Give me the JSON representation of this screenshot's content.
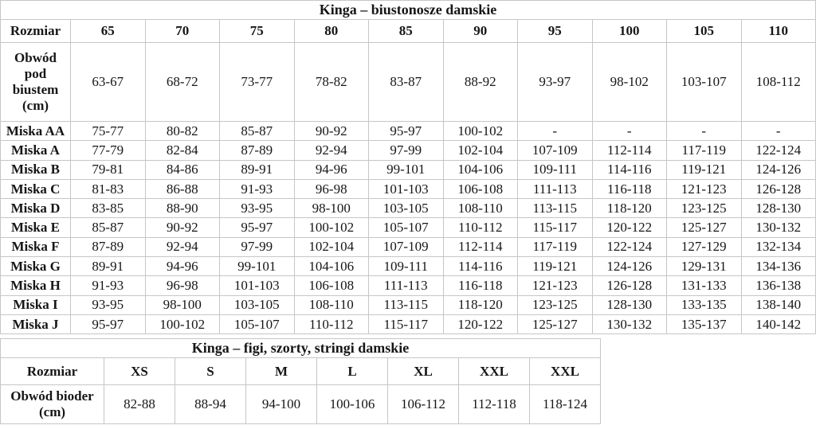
{
  "page": {
    "background_color": "#ffffff",
    "border_color": "#c6c6c6",
    "text_color": "#161616"
  },
  "bra_table": {
    "title": "Kinga – biustonosze damskie",
    "header_label": "Rozmiar",
    "header_sizes": [
      "65",
      "70",
      "75",
      "80",
      "85",
      "90",
      "95",
      "100",
      "105",
      "110"
    ],
    "underbust_label": "Obwód pod biustem (cm)",
    "underbust_values": [
      "63-67",
      "68-72",
      "73-77",
      "78-82",
      "83-87",
      "88-92",
      "93-97",
      "98-102",
      "103-107",
      "108-112"
    ],
    "rows": [
      {
        "label": "Miska AA",
        "values": [
          "75-77",
          "80-82",
          "85-87",
          "90-92",
          "95-97",
          "100-102",
          "-",
          "-",
          "-",
          "-"
        ]
      },
      {
        "label": "Miska A",
        "values": [
          "77-79",
          "82-84",
          "87-89",
          "92-94",
          "97-99",
          "102-104",
          "107-109",
          "112-114",
          "117-119",
          "122-124"
        ]
      },
      {
        "label": "Miska B",
        "values": [
          "79-81",
          "84-86",
          "89-91",
          "94-96",
          "99-101",
          "104-106",
          "109-111",
          "114-116",
          "119-121",
          "124-126"
        ]
      },
      {
        "label": "Miska C",
        "values": [
          "81-83",
          "86-88",
          "91-93",
          "96-98",
          "101-103",
          "106-108",
          "111-113",
          "116-118",
          "121-123",
          "126-128"
        ]
      },
      {
        "label": "Miska D",
        "values": [
          "83-85",
          "88-90",
          "93-95",
          "98-100",
          "103-105",
          "108-110",
          "113-115",
          "118-120",
          "123-125",
          "128-130"
        ]
      },
      {
        "label": "Miska E",
        "values": [
          "85-87",
          "90-92",
          "95-97",
          "100-102",
          "105-107",
          "110-112",
          "115-117",
          "120-122",
          "125-127",
          "130-132"
        ]
      },
      {
        "label": "Miska F",
        "values": [
          "87-89",
          "92-94",
          "97-99",
          "102-104",
          "107-109",
          "112-114",
          "117-119",
          "122-124",
          "127-129",
          "132-134"
        ]
      },
      {
        "label": "Miska G",
        "values": [
          "89-91",
          "94-96",
          "99-101",
          "104-106",
          "109-111",
          "114-116",
          "119-121",
          "124-126",
          "129-131",
          "134-136"
        ]
      },
      {
        "label": "Miska H",
        "values": [
          "91-93",
          "96-98",
          "101-103",
          "106-108",
          "111-113",
          "116-118",
          "121-123",
          "126-128",
          "131-133",
          "136-138"
        ]
      },
      {
        "label": "Miska I",
        "values": [
          "93-95",
          "98-100",
          "103-105",
          "108-110",
          "113-115",
          "118-120",
          "123-125",
          "128-130",
          "133-135",
          "138-140"
        ]
      },
      {
        "label": "Miska J",
        "values": [
          "95-97",
          "100-102",
          "105-107",
          "110-112",
          "115-117",
          "120-122",
          "125-127",
          "130-132",
          "135-137",
          "140-142"
        ]
      }
    ]
  },
  "panty_table": {
    "title": "Kinga – figi, szorty, stringi damskie",
    "header_label": "Rozmiar",
    "header_sizes": [
      "XS",
      "S",
      "M",
      "L",
      "XL",
      "XXL",
      "XXL"
    ],
    "hips_label": "Obwód bioder (cm)",
    "hips_values": [
      "82-88",
      "88-94",
      "94-100",
      "100-106",
      "106-112",
      "112-118",
      "118-124"
    ]
  }
}
